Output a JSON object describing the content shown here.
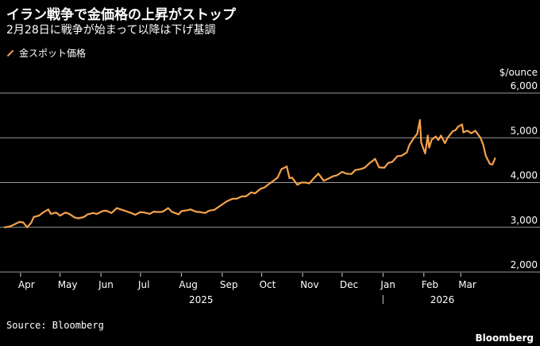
{
  "title": "イラン戦争で金価格の上昇がストップ",
  "subtitle": "2月28日に戦争が始まって以降は下げ基調",
  "source": "Source: Bloomberg",
  "brand": "Bloomberg",
  "colors": {
    "line": "#f5a24a",
    "grid": "#9a9a9a",
    "background": "#000000"
  },
  "chart_data": {
    "type": "line",
    "unit_label": "$/ounce",
    "ylim": [
      2000,
      6000
    ],
    "yticks": [
      2000,
      3000,
      4000,
      5000,
      6000
    ],
    "ytick_labels": [
      "2,000",
      "3,000",
      "4,000",
      "5,000",
      "6,000"
    ],
    "grid": true,
    "legend_position": "top-left",
    "xlim": [
      "2025-03-20",
      "2026-03-31"
    ],
    "month_ticks": [
      {
        "date": "2025-04-01",
        "label": "Apr"
      },
      {
        "date": "2025-05-01",
        "label": "May"
      },
      {
        "date": "2025-06-01",
        "label": "Jun"
      },
      {
        "date": "2025-07-01",
        "label": "Jul"
      },
      {
        "date": "2025-08-01",
        "label": "Aug"
      },
      {
        "date": "2025-09-01",
        "label": "Sep"
      },
      {
        "date": "2025-10-01",
        "label": "Oct"
      },
      {
        "date": "2025-11-01",
        "label": "Nov"
      },
      {
        "date": "2025-12-01",
        "label": "Dec"
      },
      {
        "date": "2026-01-01",
        "label": "Jan"
      },
      {
        "date": "2026-02-01",
        "label": "Feb"
      },
      {
        "date": "2026-03-01",
        "label": "Mar"
      }
    ],
    "year_labels": [
      {
        "date": "2025-08-16",
        "label": "2025"
      },
      {
        "date": "2026-02-15",
        "label": "2026"
      }
    ],
    "year_divider": "2026-01-01",
    "series": [
      {
        "name": "金スポット価格",
        "points": [
          [
            "2025-03-20",
            3000
          ],
          [
            "2025-03-24",
            3020
          ],
          [
            "2025-03-27",
            3060
          ],
          [
            "2025-03-31",
            3120
          ],
          [
            "2025-04-03",
            3110
          ],
          [
            "2025-04-06",
            3000
          ],
          [
            "2025-04-09",
            3100
          ],
          [
            "2025-04-11",
            3230
          ],
          [
            "2025-04-15",
            3260
          ],
          [
            "2025-04-18",
            3330
          ],
          [
            "2025-04-22",
            3400
          ],
          [
            "2025-04-24",
            3300
          ],
          [
            "2025-04-28",
            3330
          ],
          [
            "2025-05-01",
            3260
          ],
          [
            "2025-05-05",
            3330
          ],
          [
            "2025-05-08",
            3300
          ],
          [
            "2025-05-12",
            3220
          ],
          [
            "2025-05-15",
            3200
          ],
          [
            "2025-05-19",
            3230
          ],
          [
            "2025-05-22",
            3290
          ],
          [
            "2025-05-26",
            3320
          ],
          [
            "2025-05-29",
            3300
          ],
          [
            "2025-06-02",
            3360
          ],
          [
            "2025-06-05",
            3370
          ],
          [
            "2025-06-09",
            3320
          ],
          [
            "2025-06-13",
            3430
          ],
          [
            "2025-06-16",
            3400
          ],
          [
            "2025-06-20",
            3360
          ],
          [
            "2025-06-24",
            3320
          ],
          [
            "2025-06-27",
            3280
          ],
          [
            "2025-07-01",
            3340
          ],
          [
            "2025-07-04",
            3330
          ],
          [
            "2025-07-08",
            3300
          ],
          [
            "2025-07-11",
            3350
          ],
          [
            "2025-07-15",
            3340
          ],
          [
            "2025-07-18",
            3350
          ],
          [
            "2025-07-22",
            3430
          ],
          [
            "2025-07-25",
            3340
          ],
          [
            "2025-07-30",
            3290
          ],
          [
            "2025-08-01",
            3360
          ],
          [
            "2025-08-05",
            3380
          ],
          [
            "2025-08-08",
            3400
          ],
          [
            "2025-08-12",
            3350
          ],
          [
            "2025-08-15",
            3340
          ],
          [
            "2025-08-19",
            3320
          ],
          [
            "2025-08-22",
            3370
          ],
          [
            "2025-08-26",
            3390
          ],
          [
            "2025-08-29",
            3450
          ],
          [
            "2025-09-02",
            3530
          ],
          [
            "2025-09-05",
            3590
          ],
          [
            "2025-09-09",
            3640
          ],
          [
            "2025-09-12",
            3640
          ],
          [
            "2025-09-16",
            3690
          ],
          [
            "2025-09-19",
            3690
          ],
          [
            "2025-09-23",
            3780
          ],
          [
            "2025-09-26",
            3760
          ],
          [
            "2025-09-30",
            3860
          ],
          [
            "2025-10-03",
            3890
          ],
          [
            "2025-10-07",
            3980
          ],
          [
            "2025-10-09",
            4020
          ],
          [
            "2025-10-13",
            4110
          ],
          [
            "2025-10-16",
            4300
          ],
          [
            "2025-10-20",
            4360
          ],
          [
            "2025-10-22",
            4100
          ],
          [
            "2025-10-24",
            4110
          ],
          [
            "2025-10-28",
            3950
          ],
          [
            "2025-10-31",
            4000
          ],
          [
            "2025-11-03",
            4000
          ],
          [
            "2025-11-06",
            3980
          ],
          [
            "2025-11-10",
            4110
          ],
          [
            "2025-11-13",
            4200
          ],
          [
            "2025-11-17",
            4040
          ],
          [
            "2025-11-20",
            4080
          ],
          [
            "2025-11-24",
            4140
          ],
          [
            "2025-11-27",
            4160
          ],
          [
            "2025-12-01",
            4240
          ],
          [
            "2025-12-04",
            4200
          ],
          [
            "2025-12-08",
            4190
          ],
          [
            "2025-12-11",
            4280
          ],
          [
            "2025-12-15",
            4300
          ],
          [
            "2025-12-18",
            4330
          ],
          [
            "2025-12-22",
            4440
          ],
          [
            "2025-12-24",
            4480
          ],
          [
            "2025-12-26",
            4530
          ],
          [
            "2025-12-29",
            4340
          ],
          [
            "2026-01-02",
            4330
          ],
          [
            "2026-01-05",
            4440
          ],
          [
            "2026-01-08",
            4460
          ],
          [
            "2026-01-12",
            4590
          ],
          [
            "2026-01-15",
            4600
          ],
          [
            "2026-01-19",
            4670
          ],
          [
            "2026-01-21",
            4840
          ],
          [
            "2026-01-24",
            4980
          ],
          [
            "2026-01-27",
            5090
          ],
          [
            "2026-01-29",
            5400
          ],
          [
            "2026-01-30",
            4890
          ],
          [
            "2026-02-02",
            4650
          ],
          [
            "2026-02-04",
            5050
          ],
          [
            "2026-02-05",
            4780
          ],
          [
            "2026-02-07",
            4960
          ],
          [
            "2026-02-10",
            5030
          ],
          [
            "2026-02-12",
            4950
          ],
          [
            "2026-02-14",
            5050
          ],
          [
            "2026-02-17",
            4880
          ],
          [
            "2026-02-19",
            5000
          ],
          [
            "2026-02-23",
            5150
          ],
          [
            "2026-02-25",
            5170
          ],
          [
            "2026-02-27",
            5250
          ],
          [
            "2026-03-02",
            5300
          ],
          [
            "2026-03-03",
            5120
          ],
          [
            "2026-03-06",
            5160
          ],
          [
            "2026-03-09",
            5100
          ],
          [
            "2026-03-12",
            5160
          ],
          [
            "2026-03-16",
            5000
          ],
          [
            "2026-03-18",
            4850
          ],
          [
            "2026-03-20",
            4600
          ],
          [
            "2026-03-23",
            4420
          ],
          [
            "2026-03-25",
            4400
          ],
          [
            "2026-03-27",
            4540
          ]
        ]
      }
    ]
  }
}
